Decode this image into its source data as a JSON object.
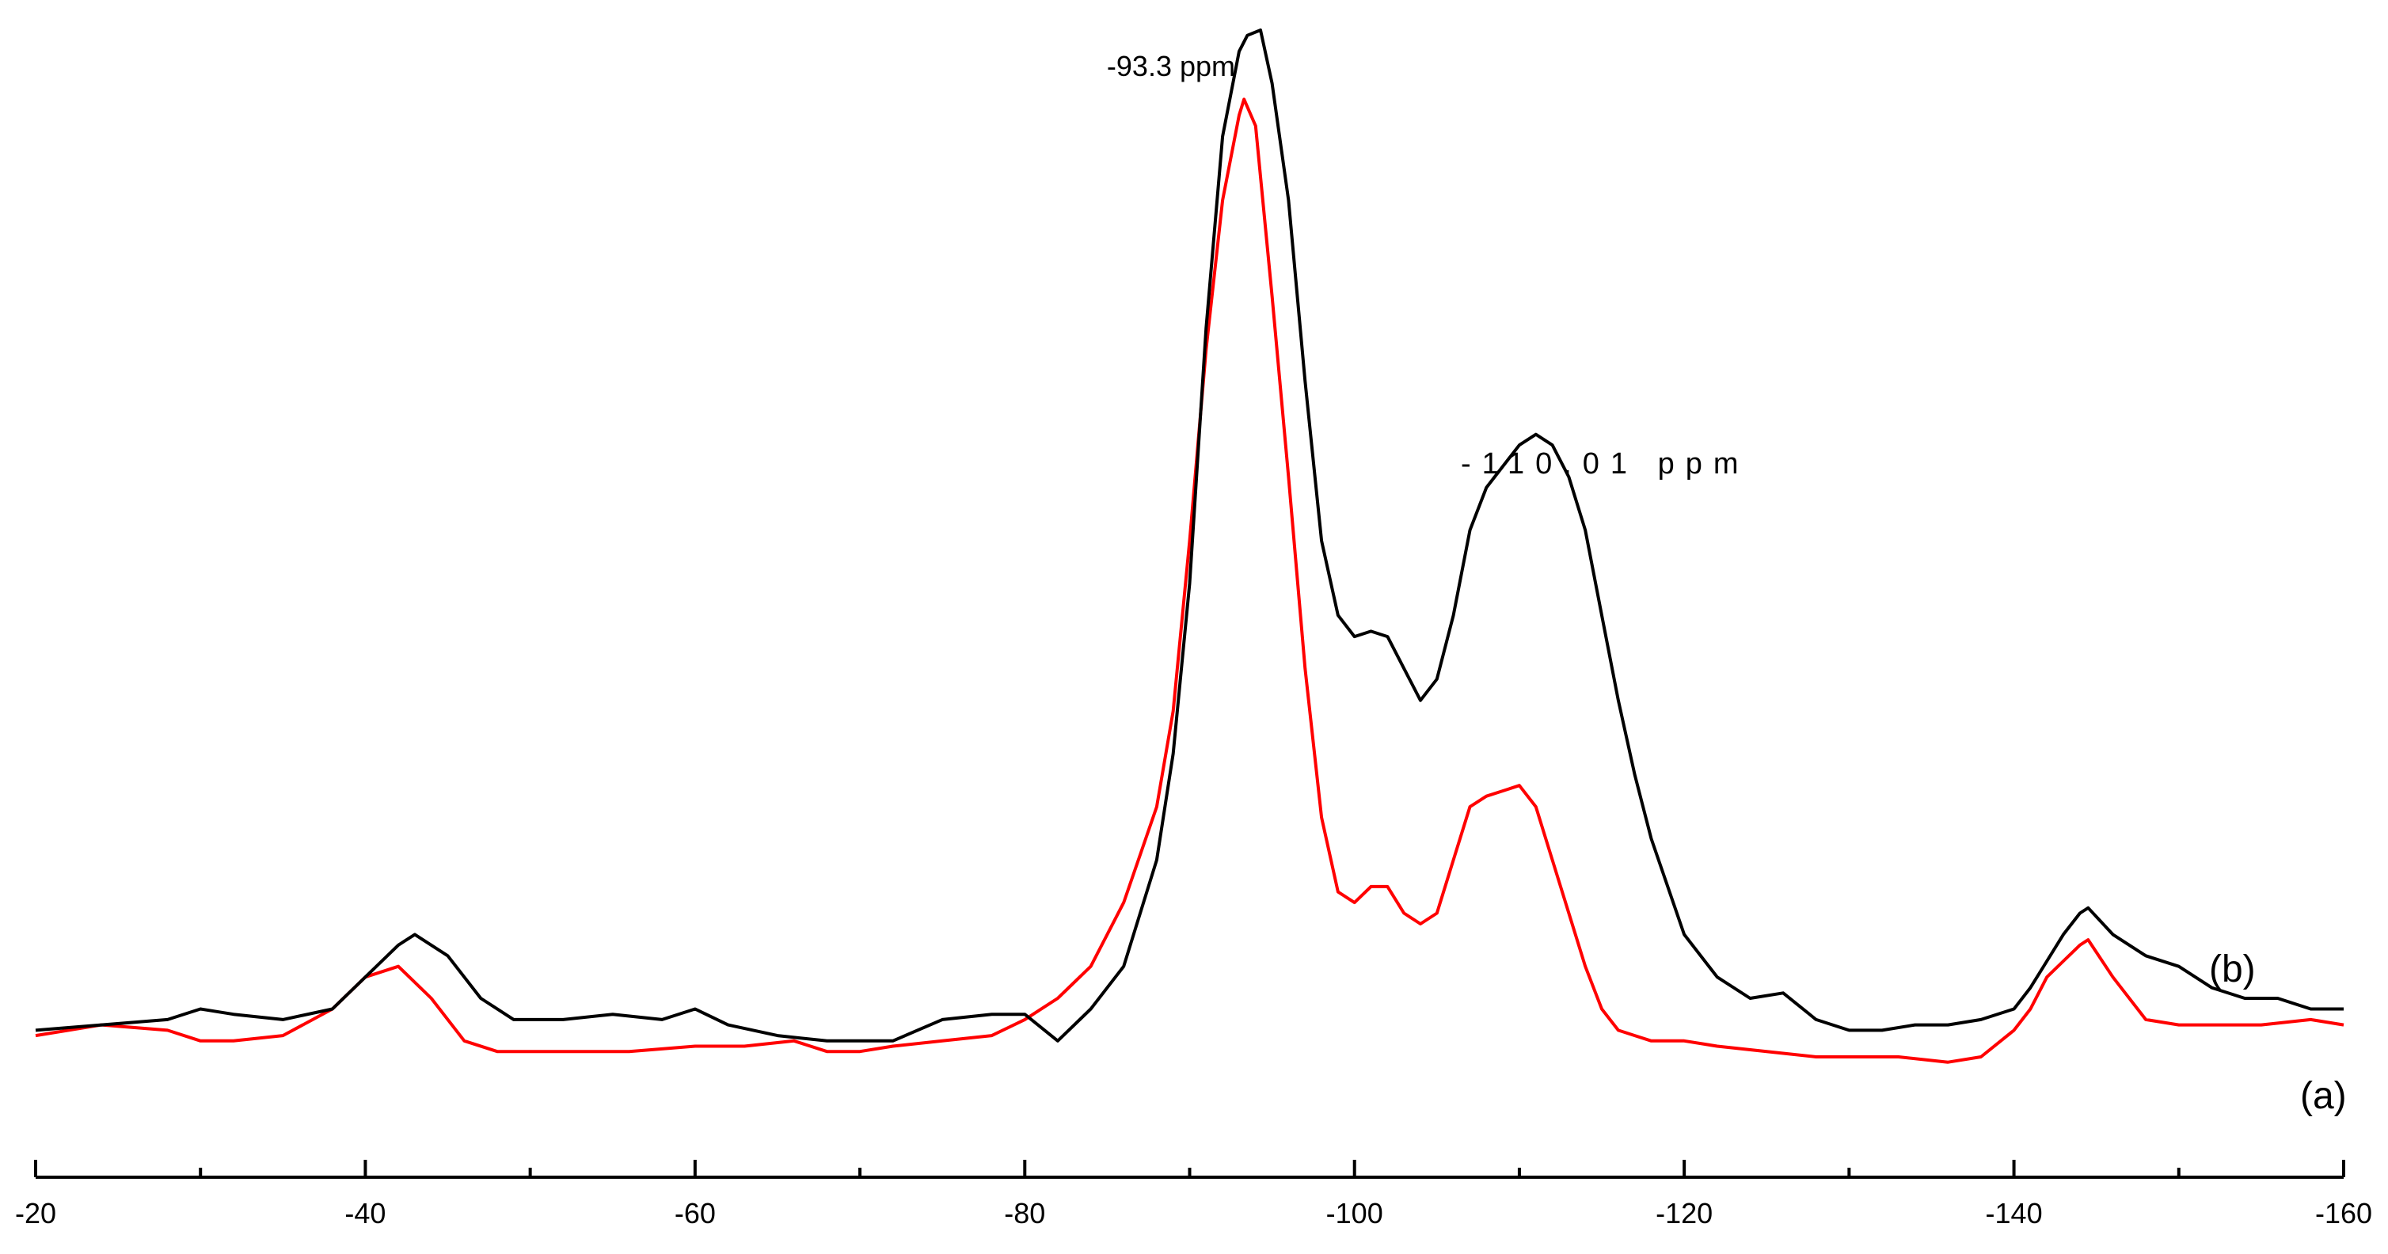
{
  "chart_data": {
    "type": "line",
    "title": "",
    "xlabel": "",
    "ylabel": "",
    "x_reversed": true,
    "xlim": [
      -20,
      -160
    ],
    "ylim": [
      0,
      100
    ],
    "x_ticks": [
      -20,
      -40,
      -60,
      -80,
      -100,
      -120,
      -140,
      -160
    ],
    "x_tick_labels": [
      "-20",
      "-40",
      "-60",
      "-80",
      "-100",
      "-120",
      "-140",
      "-160"
    ],
    "grid": false,
    "legend": "none",
    "annotations": [
      {
        "text": "-93.3 ppm",
        "x": -93.3
      },
      {
        "text": "-110.01 ppm",
        "x": -110.01
      }
    ],
    "series": [
      {
        "label": "(b)",
        "color": "#000000",
        "x": [
          -20,
          -24,
          -28,
          -30,
          -32,
          -35,
          -38,
          -40,
          -42,
          -43,
          -45,
          -47,
          -49,
          -52,
          -55,
          -58,
          -60,
          -62,
          -65,
          -68,
          -70,
          -72,
          -75,
          -78,
          -80,
          -82,
          -84,
          -86,
          -88,
          -89,
          -90,
          -91,
          -92,
          -93,
          -93.5,
          -94.3,
          -95,
          -96,
          -97,
          -98,
          -99,
          -100,
          -101,
          -102,
          -103,
          -104,
          -105,
          -106,
          -107,
          -108,
          -109,
          -110,
          -111,
          -112,
          -113,
          -114,
          -115,
          -116,
          -117,
          -118,
          -120,
          -122,
          -124,
          -126,
          -128,
          -130,
          -132,
          -134,
          -136,
          -138,
          -140,
          -141,
          -142,
          -143,
          -144,
          -144.5,
          -146,
          -148,
          -150,
          -152,
          -154,
          -156,
          -158,
          -160
        ],
        "y": [
          6,
          6.5,
          7,
          8,
          7.5,
          7,
          8,
          11,
          14,
          15,
          13,
          9,
          7,
          7,
          7.5,
          7,
          8,
          6.5,
          5.5,
          5,
          5,
          5,
          7,
          7.5,
          7.5,
          5,
          8,
          12,
          22,
          32,
          48,
          72,
          90,
          98,
          99.5,
          100,
          95,
          84,
          67,
          52,
          45,
          43,
          43.5,
          43,
          40,
          37,
          39,
          45,
          53,
          57,
          59,
          61,
          62,
          61,
          58,
          53,
          45,
          37,
          30,
          24,
          15,
          11,
          9,
          9.5,
          7,
          6,
          6,
          6.5,
          6.5,
          7,
          8,
          10,
          12.5,
          15,
          17,
          17.5,
          15,
          13,
          12,
          10,
          9,
          9,
          8,
          8
        ]
      },
      {
        "label": "(a)",
        "color": "#ff0000",
        "x": [
          -20,
          -24,
          -28,
          -30,
          -32,
          -35,
          -38,
          -40,
          -42,
          -44,
          -46,
          -48,
          -50,
          -53,
          -56,
          -60,
          -63,
          -66,
          -68,
          -70,
          -72,
          -75,
          -78,
          -80,
          -82,
          -84,
          -86,
          -88,
          -89,
          -90,
          -91,
          -92,
          -93,
          -93.3,
          -94,
          -95,
          -96,
          -97,
          -98,
          -99,
          -100,
          -101,
          -102,
          -103,
          -104,
          -105,
          -106,
          -107,
          -108,
          -109,
          -110,
          -111,
          -112,
          -113,
          -114,
          -115,
          -116,
          -117,
          -118,
          -119,
          -120,
          -122,
          -125,
          -128,
          -130,
          -133,
          -136,
          -138,
          -140,
          -141,
          -142,
          -143,
          -144,
          -144.5,
          -146,
          -148,
          -150,
          -152,
          -155,
          -158,
          -160
        ],
        "y": [
          5.5,
          6.5,
          6,
          5,
          5,
          5.5,
          8,
          11,
          12,
          9,
          5,
          4,
          4,
          4,
          4,
          4.5,
          4.5,
          5,
          4,
          4,
          4.5,
          5,
          5.5,
          7,
          9,
          12,
          18,
          27,
          36,
          52,
          70,
          84,
          92,
          93.5,
          91,
          75,
          58,
          40,
          26,
          19,
          18,
          19.5,
          19.5,
          17,
          16,
          17,
          22,
          27,
          28,
          28.5,
          29,
          27,
          22,
          17,
          12,
          8,
          6,
          5.5,
          5,
          5,
          5,
          4.5,
          4,
          3.5,
          3.5,
          3.5,
          3,
          3.5,
          6,
          8,
          11,
          12.5,
          14,
          14.5,
          11,
          7,
          6.5,
          6.5,
          6.5,
          7,
          6.5
        ]
      }
    ]
  }
}
